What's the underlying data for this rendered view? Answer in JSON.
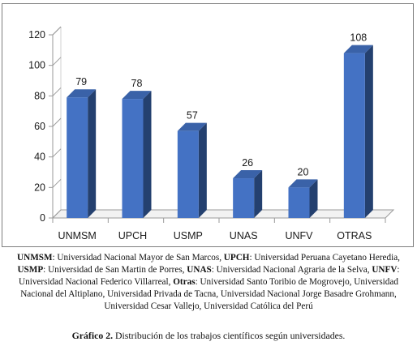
{
  "chart_data": {
    "type": "bar",
    "categories": [
      "UNMSM",
      "UPCH",
      "USMP",
      "UNAS",
      "UNFV",
      "OTRAS"
    ],
    "values": [
      79,
      78,
      57,
      26,
      20,
      108
    ],
    "data_labels": [
      "79",
      "78",
      "57",
      "26",
      "20",
      "108"
    ],
    "ylim": [
      0,
      120
    ],
    "yticks": [
      "0",
      "20",
      "40",
      "60",
      "80",
      "100",
      "120"
    ],
    "grid": false,
    "legend": "none",
    "style": "3d-column",
    "colors": {
      "bar_front": "#4472c4",
      "bar_side": "#24406f",
      "bar_top": "#3a62a8",
      "axis": "#9a9a9a",
      "text": "#1a1a1a"
    }
  },
  "legend_note": [
    {
      "abbr": "UNMSM",
      "text": ": Universidad Nacional Mayor de San Marcos, "
    },
    {
      "abbr": "UPCH",
      "text": ": Universidad Peruana Cayetano Heredia, "
    },
    {
      "abbr": "USMP",
      "text": ": Universidad de San Martin de Porres, "
    },
    {
      "abbr": "UNAS",
      "text": ": Universidad Nacional Agraria de la Selva, "
    },
    {
      "abbr": "UNFV",
      "text": ": Universidad Nacional Federico Villarreal, "
    },
    {
      "abbr": "Otras",
      "text": ": Universidad Santo Toribio de Mogrovejo, Universidad Nacional del Altiplano, Universidad Privada de Tacna, Universidad Nacional Jorge Basadre Grohmann, Universidad Cesar Vallejo, Universidad Católica del Perú"
    }
  ],
  "caption": {
    "label": "Gráfico 2.",
    "text": " Distribución de los trabajos científicos según universidades."
  }
}
